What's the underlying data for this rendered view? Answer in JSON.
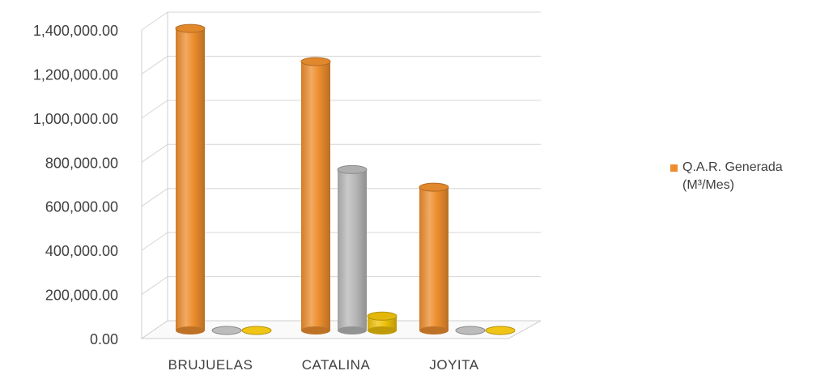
{
  "chart_data": {
    "type": "bar",
    "categories": [
      "BRUJUELAS",
      "CATALINA",
      "JOYITA"
    ],
    "series": [
      {
        "name": "Q.A.R. Generada (M³/Mes)",
        "color": "#ED8E2E",
        "values": [
          1370000,
          1220000,
          650000
        ]
      },
      {
        "color": "#B8B8B8",
        "values": [
          0,
          730000,
          0
        ]
      },
      {
        "color": "#F0C20A",
        "values": [
          0,
          65000,
          0
        ]
      }
    ],
    "yticks": [
      "0.00",
      "200,000.00",
      "400,000.00",
      "600,000.00",
      "800,000.00",
      "1,000,000.00",
      "1,200,000.00",
      "1,400,000.00"
    ],
    "ylim": [
      0,
      1400000
    ],
    "grid": true,
    "legend_position": "right",
    "style": "3d-cylinder"
  },
  "legend": {
    "line1": "Q.A.R. Generada",
    "line2": "(M³/Mes)"
  }
}
